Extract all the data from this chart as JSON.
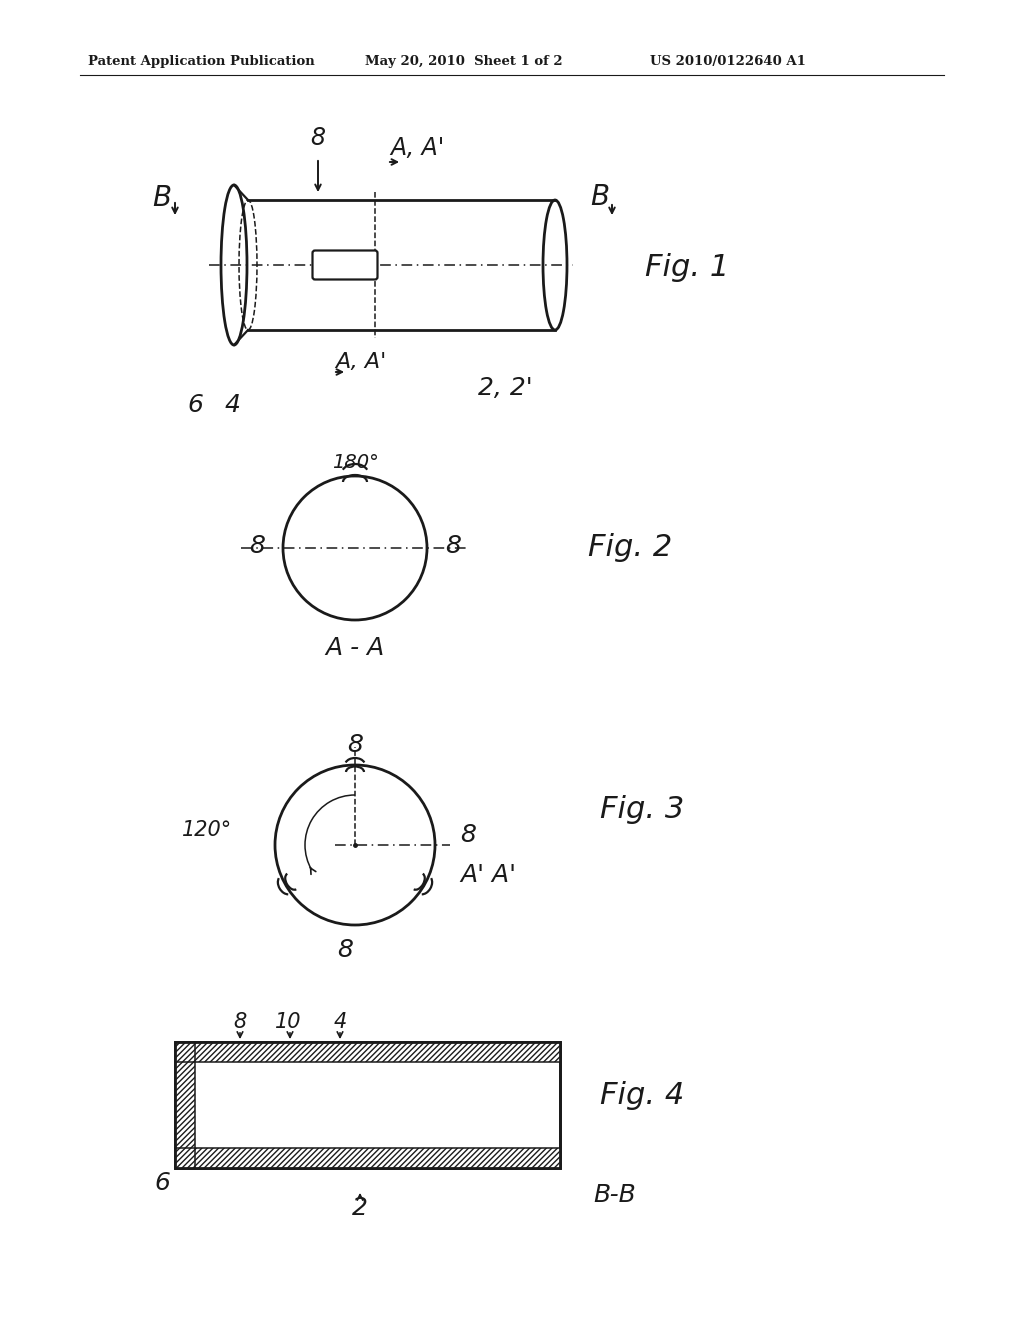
{
  "bg_color": "#ffffff",
  "line_color": "#1a1a1a",
  "header_left": "Patent Application Publication",
  "header_center": "May 20, 2010  Sheet 1 of 2",
  "header_right": "US 2010/0122640 A1"
}
